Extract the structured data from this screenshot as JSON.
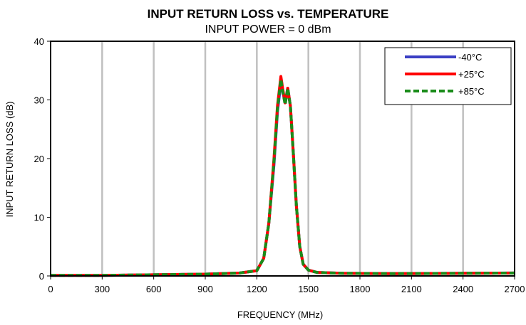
{
  "chart_data": {
    "type": "line",
    "title": "INPUT RETURN LOSS vs. TEMPERATURE",
    "subtitle": "INPUT POWER = 0 dBm",
    "xlabel": "FREQUENCY (MHz)",
    "ylabel": "INPUT RETURN LOSS (dB)",
    "xlim": [
      0,
      2700
    ],
    "ylim": [
      0,
      40
    ],
    "xticks": [
      0,
      300,
      600,
      900,
      1200,
      1500,
      1800,
      2100,
      2400,
      2700
    ],
    "yticks": [
      0,
      10,
      20,
      30,
      40
    ],
    "grid": "vertical",
    "legend_position": "top-right",
    "series": [
      {
        "name": "-40°C",
        "color": "#3b3fc4",
        "style": "solid",
        "points": [
          [
            0,
            0.1
          ],
          [
            300,
            0.1
          ],
          [
            600,
            0.2
          ],
          [
            900,
            0.3
          ],
          [
            1100,
            0.5
          ],
          [
            1200,
            0.9
          ],
          [
            1240,
            3
          ],
          [
            1270,
            9
          ],
          [
            1300,
            19
          ],
          [
            1320,
            28
          ],
          [
            1340,
            33
          ],
          [
            1350,
            31.5
          ],
          [
            1365,
            29.5
          ],
          [
            1380,
            32
          ],
          [
            1395,
            29
          ],
          [
            1410,
            22
          ],
          [
            1430,
            12
          ],
          [
            1450,
            5
          ],
          [
            1470,
            2
          ],
          [
            1500,
            1
          ],
          [
            1550,
            0.6
          ],
          [
            1700,
            0.45
          ],
          [
            2000,
            0.4
          ],
          [
            2400,
            0.45
          ],
          [
            2700,
            0.5
          ]
        ]
      },
      {
        "name": "+25°C",
        "color": "#ff0000",
        "style": "solid",
        "points": [
          [
            0,
            0.1
          ],
          [
            300,
            0.1
          ],
          [
            600,
            0.2
          ],
          [
            900,
            0.3
          ],
          [
            1100,
            0.5
          ],
          [
            1200,
            0.9
          ],
          [
            1240,
            3
          ],
          [
            1270,
            9
          ],
          [
            1300,
            20
          ],
          [
            1320,
            29
          ],
          [
            1340,
            34
          ],
          [
            1350,
            32
          ],
          [
            1365,
            29.5
          ],
          [
            1380,
            32
          ],
          [
            1395,
            29
          ],
          [
            1410,
            22
          ],
          [
            1430,
            12
          ],
          [
            1450,
            5
          ],
          [
            1470,
            2
          ],
          [
            1500,
            1
          ],
          [
            1550,
            0.6
          ],
          [
            1700,
            0.45
          ],
          [
            2000,
            0.4
          ],
          [
            2400,
            0.45
          ],
          [
            2700,
            0.5
          ]
        ]
      },
      {
        "name": "+85°C",
        "color": "#1a8c1a",
        "style": "dashed",
        "points": [
          [
            0,
            0.1
          ],
          [
            300,
            0.1
          ],
          [
            600,
            0.2
          ],
          [
            900,
            0.3
          ],
          [
            1100,
            0.5
          ],
          [
            1200,
            0.9
          ],
          [
            1240,
            3
          ],
          [
            1270,
            9
          ],
          [
            1300,
            19.5
          ],
          [
            1320,
            28.5
          ],
          [
            1340,
            33.5
          ],
          [
            1350,
            31.5
          ],
          [
            1365,
            29.2
          ],
          [
            1380,
            32
          ],
          [
            1395,
            29
          ],
          [
            1410,
            22
          ],
          [
            1430,
            12
          ],
          [
            1450,
            5
          ],
          [
            1470,
            2
          ],
          [
            1500,
            1
          ],
          [
            1550,
            0.6
          ],
          [
            1700,
            0.45
          ],
          [
            2000,
            0.4
          ],
          [
            2400,
            0.45
          ],
          [
            2700,
            0.5
          ]
        ]
      }
    ]
  }
}
